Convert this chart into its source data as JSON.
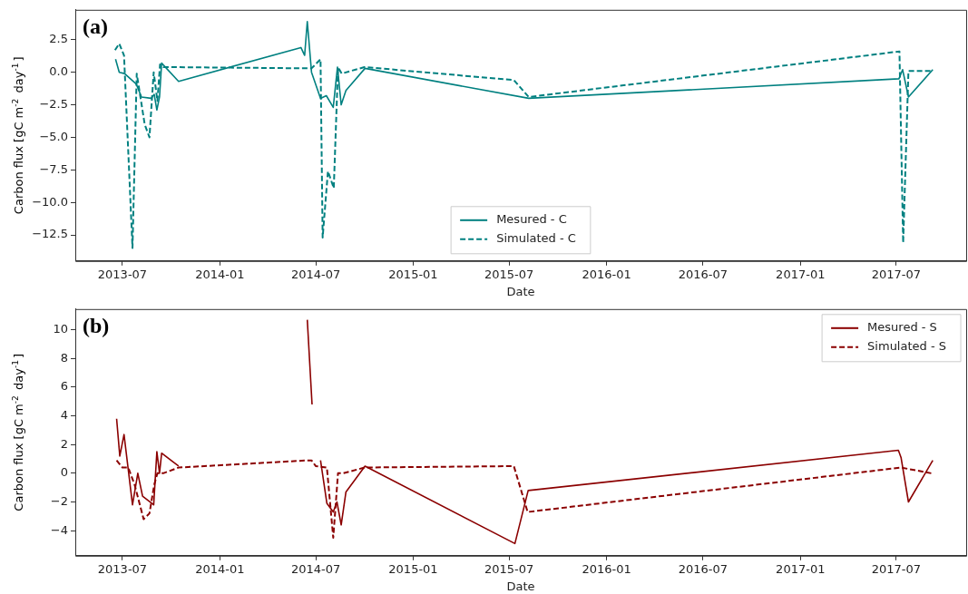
{
  "chart_data": [
    {
      "type": "line",
      "xlabel": "Date",
      "ylabel": "Carbon flux [gC m$^{-2}$ day$^{-1}$]",
      "annotations": [
        "(a)"
      ],
      "legend": "bottom",
      "marker": "none",
      "xlim": [
        "2013-04-03",
        "2017-11-10"
      ],
      "xticks": [
        "2013-07",
        "2014-01",
        "2014-07",
        "2015-01",
        "2015-07",
        "2016-01",
        "2016-07",
        "2017-01",
        "2017-07"
      ],
      "ylim": [
        -14.5,
        4.8
      ],
      "yticks": [
        {
          "value": -12.5,
          "label": "−12.5"
        },
        {
          "value": -10,
          "label": "−10.0"
        },
        {
          "value": -7.5,
          "label": "−7.5"
        },
        {
          "value": -5,
          "label": "−5.0"
        },
        {
          "value": -2.5,
          "label": "−2.5"
        },
        {
          "value": 0,
          "label": "0.0"
        },
        {
          "value": 2.5,
          "label": "2.5"
        }
      ],
      "series": [
        {
          "name": "Mesured - C",
          "color": "#008080",
          "line_style": "solid",
          "x": [
            "2013-06-18",
            "2013-06-25",
            "2013-07-05",
            "2013-07-27",
            "2013-08-06",
            "2013-08-24",
            "2013-08-30",
            "2013-09-04",
            "2013-09-09",
            "2013-09-13",
            "2013-10-15",
            "2014-06-03",
            "2014-06-10",
            "2014-06-15",
            "2014-06-23",
            "2014-07-10",
            "2014-07-21",
            "2014-08-03",
            "2014-08-11",
            "2014-08-18",
            "2014-08-27",
            "2014-10-02",
            "2015-08-07",
            "2017-07-06",
            "2017-07-13",
            "2017-07-24",
            "2017-09-08"
          ],
          "values": [
            1.0,
            0.0,
            -0.1,
            -0.9,
            -1.9,
            -2.0,
            -1.7,
            -2.9,
            -1.9,
            0.7,
            -0.7,
            1.9,
            1.3,
            3.9,
            0.0,
            -2.0,
            -1.8,
            -2.7,
            0.4,
            -2.5,
            -1.4,
            0.3,
            -2.0,
            -0.5,
            0.2,
            -1.9,
            0.2
          ]
        },
        {
          "name": "Simulated - C",
          "color": "#008080",
          "line_style": "dashed",
          "x": [
            "2013-06-17",
            "2013-06-25",
            "2013-07-04",
            "2013-07-20",
            "2013-07-28",
            "2013-08-12",
            "2013-08-21",
            "2013-08-29",
            "2013-09-05",
            "2013-09-10",
            "2013-09-16",
            "2014-06-23",
            "2014-07-10",
            "2014-07-14",
            "2014-07-24",
            "2014-08-04",
            "2014-08-12",
            "2014-08-19",
            "2014-10-01",
            "2015-07-10",
            "2015-08-07",
            "2017-07-07",
            "2017-07-14",
            "2017-07-24",
            "2017-09-08"
          ],
          "values": [
            1.7,
            2.2,
            1.3,
            -13.5,
            -0.1,
            -4.0,
            -5.0,
            0.0,
            -2.2,
            0.6,
            0.4,
            0.3,
            1.0,
            -12.7,
            -7.6,
            -8.9,
            0.4,
            -0.1,
            0.4,
            -0.6,
            -1.9,
            1.6,
            -13.1,
            0.1,
            0.1
          ]
        }
      ]
    },
    {
      "type": "line",
      "xlabel": "Date",
      "ylabel": "Carbon flux [gC m$^{-2}$ day$^{-1}$]",
      "annotations": [
        "(b)"
      ],
      "legend": "top right",
      "marker": "none",
      "xlim": [
        "2013-04-03",
        "2017-11-10"
      ],
      "xticks": [
        "2013-07",
        "2014-01",
        "2014-07",
        "2015-01",
        "2015-07",
        "2016-01",
        "2016-07",
        "2017-01",
        "2017-07"
      ],
      "ylim": [
        -5.75,
        11.45
      ],
      "yticks": [
        {
          "value": -4,
          "label": "−4"
        },
        {
          "value": -2,
          "label": "−2"
        },
        0,
        2,
        4,
        6,
        8,
        10
      ],
      "series": [
        {
          "name": "Mesured - S",
          "color": "#8b0000",
          "line_style": "solid",
          "x": [
            "2013-06-20",
            "2013-06-26",
            "2013-07-04",
            "2013-07-20",
            "2013-07-30",
            "2013-08-08",
            "2013-08-29",
            "2013-09-04",
            "2013-09-09",
            "2013-09-13",
            "2013-10-15",
            "2014-01-01",
            "2014-06-15",
            "2014-06-24",
            "2014-07-01",
            "2014-07-10",
            "2014-07-22",
            "2014-08-03",
            "2014-08-10",
            "2014-08-18",
            "2014-08-27",
            "2014-10-02",
            "2015-07-12",
            "2015-08-06",
            "2017-07-05",
            "2017-07-10",
            "2017-07-24",
            "2017-09-08"
          ],
          "values": [
            3.8,
            1.2,
            2.7,
            -2.2,
            0.0,
            -1.6,
            -2.2,
            1.5,
            0.0,
            1.4,
            0.5,
            null,
            10.7,
            4.8,
            null,
            0.9,
            -2.1,
            -2.7,
            -2.0,
            -3.6,
            -1.3,
            0.5,
            -4.9,
            -1.2,
            1.6,
            1.1,
            -2.0,
            0.9
          ]
        },
        {
          "name": "Simulated - S",
          "color": "#8b0000",
          "line_style": "dashed",
          "x": [
            "2013-06-20",
            "2013-07-01",
            "2013-07-12",
            "2013-07-24",
            "2013-08-10",
            "2013-08-21",
            "2013-08-30",
            "2013-09-05",
            "2013-09-16",
            "2013-10-15",
            "2014-06-15",
            "2014-06-23",
            "2014-07-01",
            "2014-07-22",
            "2014-08-03",
            "2014-08-12",
            "2014-08-22",
            "2014-10-01",
            "2015-07-10",
            "2015-08-05",
            "2017-07-10",
            "2017-09-05"
          ],
          "values": [
            0.9,
            0.4,
            0.4,
            -0.8,
            -3.2,
            -2.8,
            -0.8,
            0.0,
            0.0,
            0.4,
            0.9,
            0.9,
            0.5,
            0.4,
            -4.5,
            0.0,
            0.0,
            0.4,
            0.5,
            -2.7,
            0.4,
            0.0
          ]
        }
      ]
    }
  ]
}
